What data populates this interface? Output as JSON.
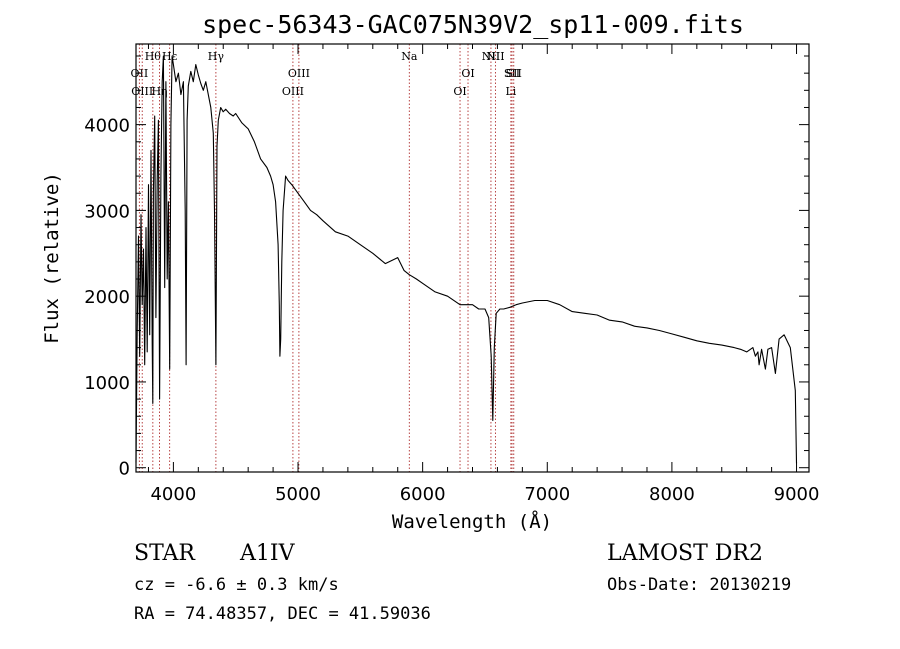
{
  "chart_data": {
    "type": "line",
    "title": "spec-56343-GAC075N39V2_sp11-009.fits",
    "xlabel": "Wavelength (Å)",
    "ylabel": "Flux (relative)",
    "xlim": [
      3700,
      9100
    ],
    "ylim": [
      -50,
      4940
    ],
    "x_ticks": [
      4000,
      5000,
      6000,
      7000,
      8000,
      9000
    ],
    "x_tick_labels": [
      "4000",
      "5000",
      "6000",
      "7000",
      "8000",
      "9000"
    ],
    "y_ticks": [
      0,
      1000,
      2000,
      3000,
      4000
    ],
    "y_tick_labels": [
      "0",
      "1000",
      "2000",
      "3000",
      "4000"
    ],
    "grid": false,
    "line_markers": [
      {
        "wavelength": 3727,
        "label": "OII",
        "row": 1
      },
      {
        "wavelength": 3750,
        "label": "OIII",
        "row": 2
      },
      {
        "wavelength": 3835,
        "label": "Hθ",
        "row": 0
      },
      {
        "wavelength": 3889,
        "label": "Hη",
        "row": 2
      },
      {
        "wavelength": 3970,
        "label": "Hε",
        "row": 0
      },
      {
        "wavelength": 4341,
        "label": "Hγ",
        "row": 0
      },
      {
        "wavelength": 4959,
        "label": "OIII",
        "row": 2
      },
      {
        "wavelength": 5007,
        "label": "OIII",
        "row": 1
      },
      {
        "wavelength": 5893,
        "label": "Na",
        "row": 0
      },
      {
        "wavelength": 6300,
        "label": "OI",
        "row": 2
      },
      {
        "wavelength": 6364,
        "label": "OI",
        "row": 1
      },
      {
        "wavelength": 6548,
        "label": "NII",
        "row": 0
      },
      {
        "wavelength": 6584,
        "label": "NII",
        "row": 0
      },
      {
        "wavelength": 6708,
        "label": "Li",
        "row": 2
      },
      {
        "wavelength": 6717,
        "label": "SII",
        "row": 1
      },
      {
        "wavelength": 6731,
        "label": "SII",
        "row": 1
      }
    ],
    "series": [
      {
        "x": [
          3700,
          3710,
          3720,
          3730,
          3740,
          3750,
          3760,
          3770,
          3780,
          3790,
          3800,
          3810,
          3820,
          3830,
          3835,
          3840,
          3850,
          3860,
          3870,
          3880,
          3889,
          3900,
          3910,
          3920,
          3930,
          3940,
          3950,
          3960,
          3970,
          3980,
          3990,
          4000,
          4020,
          4040,
          4060,
          4080,
          4095,
          4102,
          4110,
          4120,
          4140,
          4160,
          4180,
          4200,
          4220,
          4240,
          4260,
          4280,
          4300,
          4320,
          4330,
          4341,
          4350,
          4360,
          4380,
          4400,
          4420,
          4450,
          4480,
          4500,
          4550,
          4600,
          4650,
          4700,
          4750,
          4780,
          4800,
          4820,
          4840,
          4850,
          4855,
          4861,
          4866,
          4870,
          4880,
          4900,
          4920,
          4950,
          5000,
          5050,
          5100,
          5150,
          5200,
          5300,
          5400,
          5500,
          5600,
          5700,
          5800,
          5850,
          5893,
          5950,
          6000,
          6100,
          6200,
          6300,
          6400,
          6450,
          6500,
          6530,
          6550,
          6563,
          6575,
          6590,
          6620,
          6650,
          6700,
          6750,
          6800,
          6900,
          7000,
          7100,
          7200,
          7300,
          7400,
          7500,
          7600,
          7700,
          7800,
          7900,
          8000,
          8100,
          8200,
          8300,
          8400,
          8500,
          8550,
          8600,
          8650,
          8670,
          8690,
          8700,
          8720,
          8750,
          8770,
          8800,
          8830,
          8860,
          8900,
          8950,
          8990,
          9000
        ],
        "y": [
          60,
          1600,
          2700,
          1300,
          2950,
          1900,
          2550,
          1200,
          2800,
          1350,
          3300,
          1550,
          3700,
          1450,
          750,
          3200,
          4100,
          1750,
          3350,
          4050,
          800,
          3400,
          4500,
          4800,
          2100,
          4500,
          2200,
          3100,
          1150,
          4000,
          4800,
          4700,
          4500,
          4600,
          4350,
          4500,
          3000,
          1200,
          4050,
          4450,
          4620,
          4500,
          4700,
          4580,
          4480,
          4400,
          4500,
          4350,
          4200,
          3900,
          3000,
          1200,
          3750,
          4050,
          4200,
          4150,
          4180,
          4130,
          4100,
          4130,
          4020,
          3950,
          3800,
          3600,
          3500,
          3400,
          3300,
          3100,
          2600,
          1900,
          1300,
          1500,
          2000,
          2400,
          3000,
          3400,
          3350,
          3300,
          3200,
          3100,
          3000,
          2950,
          2880,
          2750,
          2700,
          2600,
          2500,
          2380,
          2450,
          2300,
          2250,
          2200,
          2150,
          2050,
          2000,
          1900,
          1900,
          1850,
          1850,
          1750,
          1300,
          550,
          1400,
          1800,
          1850,
          1850,
          1870,
          1900,
          1920,
          1950,
          1950,
          1900,
          1820,
          1800,
          1780,
          1720,
          1700,
          1650,
          1630,
          1600,
          1560,
          1520,
          1480,
          1450,
          1430,
          1400,
          1380,
          1350,
          1400,
          1300,
          1350,
          1200,
          1380,
          1150,
          1380,
          1400,
          1100,
          1500,
          1550,
          1400,
          900,
          50
        ]
      }
    ]
  },
  "info": {
    "object_type": "STAR",
    "spectral_class": "A1IV",
    "redshift": "cz = -6.6 ± 0.3 km/s",
    "coords": "RA =  74.48357, DEC =  41.59036",
    "survey": "LAMOST DR2",
    "obs_date": "Obs-Date: 20130219"
  }
}
